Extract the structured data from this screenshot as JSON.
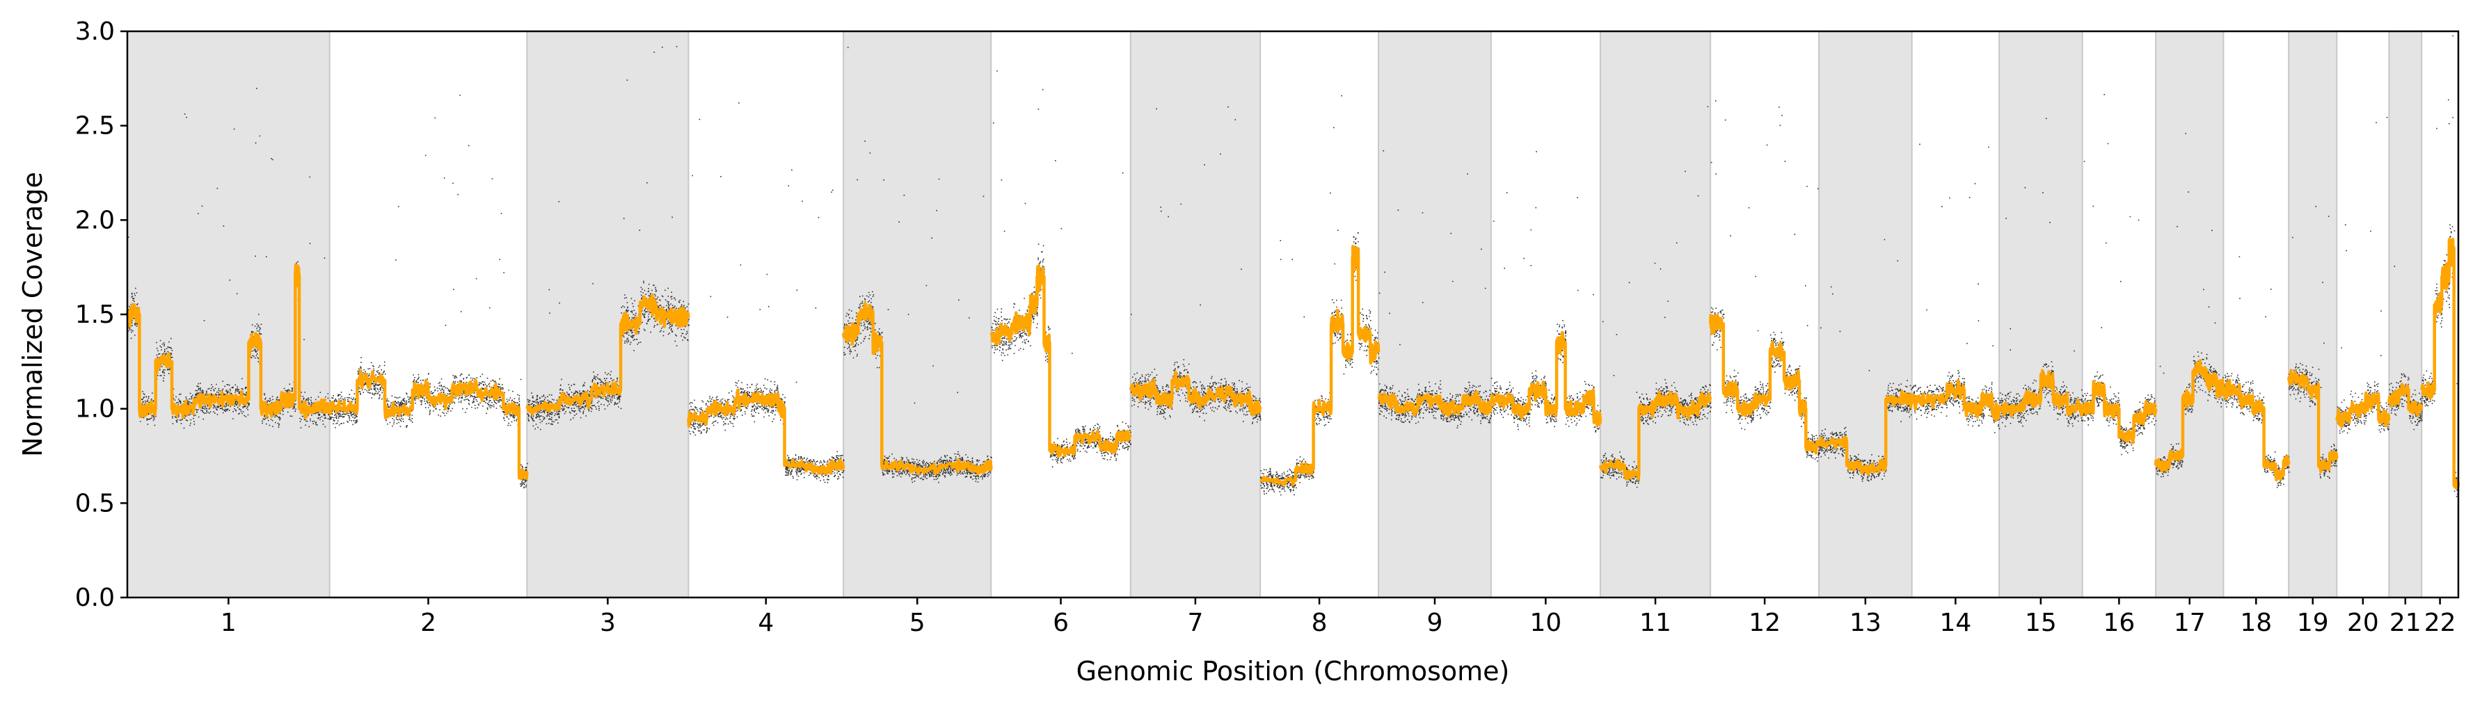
{
  "chart_data": {
    "type": "scatter",
    "title": "",
    "xlabel": "Genomic Position (Chromosome)",
    "ylabel": "Normalized Coverage",
    "ylim": [
      0,
      3.0
    ],
    "yticks": [
      "0.0",
      "0.5",
      "1.0",
      "1.5",
      "2.0",
      "2.5",
      "3.0"
    ],
    "grid": false,
    "legend": "none",
    "colors": {
      "points": "#000000",
      "segment_line": "#FFA500",
      "shade": "#e4e4e4",
      "shade_border": "#c8c8c8"
    },
    "chromosomes": [
      {
        "label": "1",
        "length": 248,
        "shaded": true,
        "levels": [
          [
            0.0,
            1.5
          ],
          [
            0.06,
            1.0
          ],
          [
            0.14,
            1.25
          ],
          [
            0.22,
            1.0
          ],
          [
            0.33,
            1.05
          ],
          [
            0.44,
            1.05
          ],
          [
            0.6,
            1.35
          ],
          [
            0.66,
            1.0
          ],
          [
            0.76,
            1.05
          ],
          [
            0.83,
            1.7
          ],
          [
            0.85,
            1.0
          ],
          [
            0.92,
            1.0
          ]
        ]
      },
      {
        "label": "2",
        "length": 242,
        "shaded": false,
        "levels": [
          [
            0.0,
            1.0
          ],
          [
            0.14,
            1.15
          ],
          [
            0.28,
            1.0
          ],
          [
            0.42,
            1.1
          ],
          [
            0.5,
            1.05
          ],
          [
            0.62,
            1.1
          ],
          [
            0.75,
            1.08
          ],
          [
            0.88,
            1.0
          ],
          [
            0.96,
            0.65
          ]
        ]
      },
      {
        "label": "3",
        "length": 198,
        "shaded": true,
        "levels": [
          [
            0.0,
            1.0
          ],
          [
            0.2,
            1.05
          ],
          [
            0.4,
            1.1
          ],
          [
            0.58,
            1.45
          ],
          [
            0.7,
            1.55
          ],
          [
            0.8,
            1.5
          ],
          [
            0.92,
            1.48
          ]
        ]
      },
      {
        "label": "4",
        "length": 190,
        "shaded": false,
        "levels": [
          [
            0.0,
            0.95
          ],
          [
            0.12,
            1.0
          ],
          [
            0.3,
            1.05
          ],
          [
            0.48,
            1.05
          ],
          [
            0.58,
            1.0
          ],
          [
            0.62,
            0.7
          ],
          [
            0.8,
            0.68
          ],
          [
            0.92,
            0.7
          ]
        ]
      },
      {
        "label": "5",
        "length": 181,
        "shaded": true,
        "levels": [
          [
            0.0,
            1.4
          ],
          [
            0.1,
            1.5
          ],
          [
            0.2,
            1.35
          ],
          [
            0.26,
            0.7
          ],
          [
            0.45,
            0.68
          ],
          [
            0.65,
            0.7
          ],
          [
            0.85,
            0.68
          ],
          [
            0.96,
            0.7
          ]
        ]
      },
      {
        "label": "6",
        "length": 171,
        "shaded": false,
        "levels": [
          [
            0.0,
            1.4
          ],
          [
            0.15,
            1.45
          ],
          [
            0.28,
            1.55
          ],
          [
            0.33,
            1.7
          ],
          [
            0.38,
            1.35
          ],
          [
            0.42,
            0.78
          ],
          [
            0.6,
            0.85
          ],
          [
            0.78,
            0.8
          ],
          [
            0.9,
            0.85
          ]
        ]
      },
      {
        "label": "7",
        "length": 159,
        "shaded": true,
        "levels": [
          [
            0.0,
            1.1
          ],
          [
            0.2,
            1.05
          ],
          [
            0.32,
            1.15
          ],
          [
            0.45,
            1.05
          ],
          [
            0.6,
            1.08
          ],
          [
            0.8,
            1.05
          ],
          [
            0.92,
            1.0
          ]
        ]
      },
      {
        "label": "8",
        "length": 145,
        "shaded": false,
        "levels": [
          [
            0.0,
            0.62
          ],
          [
            0.3,
            0.68
          ],
          [
            0.45,
            1.0
          ],
          [
            0.6,
            1.45
          ],
          [
            0.7,
            1.3
          ],
          [
            0.78,
            1.8
          ],
          [
            0.83,
            1.4
          ],
          [
            0.93,
            1.3
          ]
        ]
      },
      {
        "label": "9",
        "length": 138,
        "shaded": true,
        "levels": [
          [
            0.0,
            1.05
          ],
          [
            0.15,
            1.0
          ],
          [
            0.35,
            1.05
          ],
          [
            0.55,
            1.0
          ],
          [
            0.75,
            1.05
          ],
          [
            0.9,
            1.0
          ]
        ]
      },
      {
        "label": "10",
        "length": 134,
        "shaded": false,
        "levels": [
          [
            0.0,
            1.05
          ],
          [
            0.2,
            1.0
          ],
          [
            0.35,
            1.1
          ],
          [
            0.5,
            1.0
          ],
          [
            0.6,
            1.35
          ],
          [
            0.68,
            1.0
          ],
          [
            0.85,
            1.05
          ],
          [
            0.94,
            0.95
          ]
        ]
      },
      {
        "label": "11",
        "length": 135,
        "shaded": true,
        "levels": [
          [
            0.0,
            0.7
          ],
          [
            0.22,
            0.65
          ],
          [
            0.35,
            1.0
          ],
          [
            0.5,
            1.05
          ],
          [
            0.7,
            1.0
          ],
          [
            0.9,
            1.05
          ]
        ]
      },
      {
        "label": "12",
        "length": 133,
        "shaded": false,
        "levels": [
          [
            0.0,
            1.45
          ],
          [
            0.12,
            1.1
          ],
          [
            0.25,
            1.0
          ],
          [
            0.4,
            1.05
          ],
          [
            0.55,
            1.3
          ],
          [
            0.68,
            1.15
          ],
          [
            0.82,
            1.0
          ],
          [
            0.88,
            0.8
          ]
        ]
      },
      {
        "label": "13",
        "length": 114,
        "shaded": true,
        "levels": [
          [
            0.0,
            0.82
          ],
          [
            0.3,
            0.7
          ],
          [
            0.45,
            0.68
          ],
          [
            0.65,
            0.7
          ],
          [
            0.72,
            1.05
          ],
          [
            0.9,
            1.05
          ]
        ]
      },
      {
        "label": "14",
        "length": 107,
        "shaded": false,
        "levels": [
          [
            0.0,
            1.05
          ],
          [
            0.4,
            1.1
          ],
          [
            0.6,
            1.0
          ],
          [
            0.8,
            1.05
          ],
          [
            0.92,
            0.98
          ]
        ]
      },
      {
        "label": "15",
        "length": 102,
        "shaded": true,
        "levels": [
          [
            0.0,
            1.0
          ],
          [
            0.3,
            1.05
          ],
          [
            0.5,
            1.15
          ],
          [
            0.65,
            1.05
          ],
          [
            0.82,
            1.0
          ]
        ]
      },
      {
        "label": "16",
        "length": 90,
        "shaded": false,
        "levels": [
          [
            0.0,
            1.0
          ],
          [
            0.15,
            1.1
          ],
          [
            0.3,
            1.0
          ],
          [
            0.5,
            0.85
          ],
          [
            0.7,
            0.95
          ],
          [
            0.85,
            1.0
          ]
        ]
      },
      {
        "label": "17",
        "length": 83,
        "shaded": true,
        "levels": [
          [
            0.0,
            0.7
          ],
          [
            0.2,
            0.75
          ],
          [
            0.4,
            1.05
          ],
          [
            0.55,
            1.2
          ],
          [
            0.75,
            1.15
          ],
          [
            0.9,
            1.1
          ]
        ]
      },
      {
        "label": "18",
        "length": 80,
        "shaded": false,
        "levels": [
          [
            0.0,
            1.1
          ],
          [
            0.25,
            1.05
          ],
          [
            0.45,
            1.0
          ],
          [
            0.62,
            0.7
          ],
          [
            0.8,
            0.65
          ],
          [
            0.92,
            0.72
          ]
        ]
      },
      {
        "label": "19",
        "length": 59,
        "shaded": true,
        "levels": [
          [
            0.0,
            1.15
          ],
          [
            0.4,
            1.1
          ],
          [
            0.62,
            0.7
          ],
          [
            0.85,
            0.75
          ]
        ]
      },
      {
        "label": "20",
        "length": 64,
        "shaded": false,
        "levels": [
          [
            0.0,
            0.95
          ],
          [
            0.25,
            1.0
          ],
          [
            0.55,
            1.05
          ],
          [
            0.8,
            0.95
          ]
        ]
      },
      {
        "label": "21",
        "length": 40,
        "shaded": true,
        "levels": [
          [
            0.0,
            1.05
          ],
          [
            0.3,
            1.1
          ],
          [
            0.6,
            1.0
          ]
        ]
      },
      {
        "label": "22",
        "length": 45,
        "shaded": false,
        "levels": [
          [
            0.0,
            1.1
          ],
          [
            0.35,
            1.55
          ],
          [
            0.55,
            1.7
          ],
          [
            0.75,
            1.85
          ],
          [
            0.88,
            0.6
          ]
        ]
      }
    ]
  }
}
